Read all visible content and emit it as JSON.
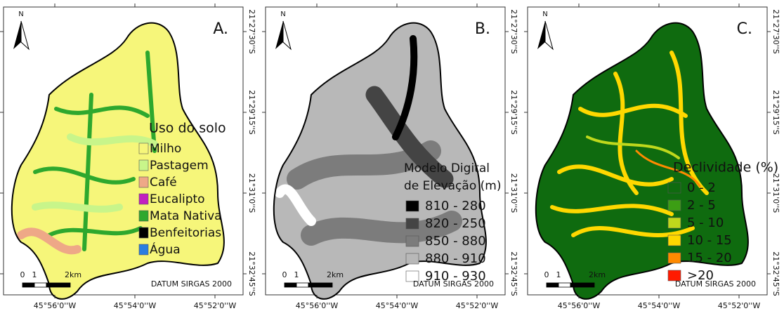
{
  "panels": [
    {
      "label": "A.",
      "north": "N",
      "legend_title": [
        "Uso do solo"
      ],
      "legend": [
        {
          "label": "Milho",
          "color": "#f6f67a"
        },
        {
          "label": "Pastagem",
          "color": "#c8f58a"
        },
        {
          "label": "Café",
          "color": "#eea887"
        },
        {
          "label": "Eucalipto",
          "color": "#c21fc0"
        },
        {
          "label": "Mata Nativa",
          "color": "#2ea82e"
        },
        {
          "label": "Benfeitorias",
          "color": "#000000"
        },
        {
          "label": "Água",
          "color": "#2a7de0"
        }
      ],
      "scale": [
        "0",
        "1",
        "2km"
      ],
      "datum": "DATUM SIRGAS 2000",
      "x_labels": [
        "45°56'0''W",
        "45°54'0''W",
        "45°52'0''W"
      ],
      "y_labels": [
        "21°27'30''S",
        "21°29'15''S",
        "21°31'0''S",
        "21°32'45''S"
      ]
    },
    {
      "label": "B.",
      "north": "N",
      "legend_title": [
        "Modelo Digital",
        "de Elevação (m)"
      ],
      "legend": [
        {
          "label": "810 - 280",
          "color": "#000000"
        },
        {
          "label": "820 - 250",
          "color": "#444444"
        },
        {
          "label": "850 - 880",
          "color": "#7c7c7c"
        },
        {
          "label": "880 - 910",
          "color": "#b8b8b8"
        },
        {
          "label": "910 - 930",
          "color": "#ffffff"
        }
      ],
      "scale": [
        "0",
        "1",
        "2km"
      ],
      "datum": "DATUM SIRGAS 2000",
      "x_labels": [
        "45°56'0''W",
        "45°54'0''W",
        "45°52'0''W"
      ],
      "y_labels": [
        "21°27'30''S",
        "21°29'15''S",
        "21°31'0''S",
        "21°32'45''S"
      ]
    },
    {
      "label": "C.",
      "north": "N",
      "legend_title": [
        "Declividade (%)"
      ],
      "legend": [
        {
          "label": "0 - 2",
          "color": "#0f6b0f"
        },
        {
          "label": "2 - 5",
          "color": "#3c9e14"
        },
        {
          "label": "5 - 10",
          "color": "#bfd81c"
        },
        {
          "label": "10 - 15",
          "color": "#ffd800"
        },
        {
          "label": "15 - 20",
          "color": "#ff8a00"
        },
        {
          "label": ">20",
          "color": "#ff1a00"
        }
      ],
      "scale": [
        "0",
        "1",
        "2km"
      ],
      "datum": "DATUM SIRGAS 2000",
      "x_labels": [
        "45°56'0''W",
        "45°54'0''W",
        "45°52'0''W"
      ],
      "y_labels": [
        "21°27'30''S",
        "21°29'15''S",
        "21°31'0''S",
        "21°32'45''S"
      ]
    }
  ]
}
